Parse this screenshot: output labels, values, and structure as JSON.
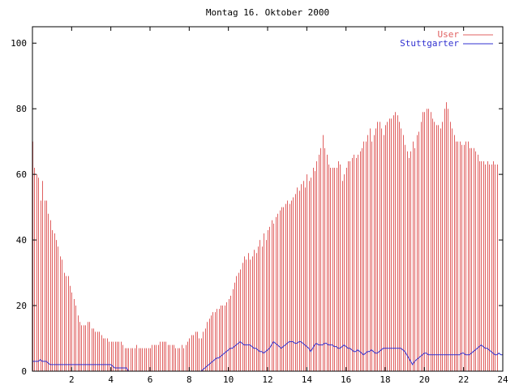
{
  "chart_data": {
    "type": "bar",
    "title": "Montag 16. Oktober 2000",
    "xlabel": "",
    "ylabel": "",
    "xlim": [
      0,
      24
    ],
    "ylim": [
      0,
      105
    ],
    "x_ticks": [
      2,
      4,
      6,
      8,
      10,
      12,
      14,
      16,
      18,
      20,
      22,
      24
    ],
    "y_ticks": [
      0,
      20,
      40,
      60,
      80,
      100
    ],
    "legend_position": "top-right",
    "series": [
      {
        "name": "User",
        "style": "impulses",
        "color": "#e06060",
        "x_start": 0,
        "x_step": 0.1,
        "values": [
          70,
          62,
          60,
          59,
          52,
          58,
          52,
          52,
          48,
          46,
          43,
          42,
          40,
          38,
          35,
          34,
          30,
          29,
          29,
          26,
          24,
          22,
          20,
          17,
          15,
          14,
          14,
          14,
          15,
          15,
          13,
          13,
          12,
          12,
          12,
          11,
          10,
          10,
          10,
          9,
          9,
          9,
          9,
          9,
          9,
          9,
          8,
          7,
          7,
          7,
          7,
          7,
          7,
          8,
          7,
          7,
          7,
          7,
          7,
          7,
          7,
          8,
          8,
          8,
          8,
          9,
          9,
          9,
          9,
          8,
          8,
          8,
          8,
          7,
          7,
          7,
          8,
          7,
          8,
          9,
          10,
          11,
          11,
          12,
          12,
          10,
          10,
          12,
          13,
          15,
          16,
          17,
          18,
          18,
          19,
          19,
          20,
          20,
          20,
          21,
          22,
          23,
          25,
          27,
          29,
          30,
          31,
          33,
          35,
          34,
          36,
          34,
          35,
          37,
          36,
          38,
          40,
          38,
          42,
          40,
          43,
          44,
          46,
          45,
          47,
          48,
          49,
          50,
          50,
          51,
          52,
          51,
          52,
          53,
          54,
          56,
          55,
          57,
          58,
          56,
          60,
          58,
          59,
          62,
          61,
          64,
          66,
          68,
          72,
          68,
          66,
          63,
          62,
          62,
          62,
          62,
          64,
          63,
          58,
          60,
          62,
          64,
          64,
          65,
          66,
          65,
          66,
          67,
          68,
          70,
          70,
          72,
          74,
          70,
          72,
          74,
          76,
          76,
          74,
          72,
          75,
          76,
          77,
          77,
          78,
          79,
          78,
          76,
          74,
          72,
          69,
          67,
          65,
          67,
          70,
          68,
          72,
          73,
          76,
          79,
          79,
          80,
          80,
          79,
          77,
          76,
          75,
          75,
          74,
          76,
          80,
          82,
          80,
          76,
          74,
          72,
          70,
          70,
          70,
          69,
          69,
          70,
          70,
          68,
          68,
          68,
          67,
          66,
          64,
          64,
          64,
          63,
          64,
          63,
          63,
          64,
          63,
          63
        ]
      },
      {
        "name": "Stuttgarter",
        "style": "line",
        "color": "#3030d0",
        "x_start": 0,
        "x_step": 0.1,
        "values": [
          3,
          3,
          3,
          3,
          3.5,
          3,
          3,
          3,
          2.5,
          2,
          2,
          2,
          2,
          2,
          2,
          2,
          2,
          2,
          2,
          2,
          2,
          2,
          2,
          2,
          2,
          2,
          2,
          2,
          2,
          2,
          2,
          2,
          2,
          2,
          2,
          2,
          2,
          2,
          2,
          2,
          2,
          1.5,
          1,
          1,
          1,
          1,
          1,
          1,
          1,
          0,
          0,
          0,
          0,
          0,
          0,
          0,
          0,
          0,
          0,
          0,
          0,
          0,
          0,
          0,
          0,
          0,
          0,
          0,
          0,
          0,
          0,
          0,
          0,
          0,
          0,
          0,
          0,
          0,
          0,
          0,
          0,
          0,
          0,
          0,
          0,
          0,
          0,
          0.5,
          1,
          1.5,
          2,
          2.5,
          3,
          3.5,
          4,
          4,
          4.5,
          5,
          5.5,
          6,
          6.5,
          7,
          7,
          7.5,
          8,
          8.5,
          9,
          8.5,
          8,
          8,
          8,
          8,
          7.5,
          7,
          7,
          6.5,
          6,
          6,
          5.5,
          6,
          6.5,
          7,
          8,
          9,
          8.5,
          8,
          7.5,
          7,
          7.5,
          8,
          8.5,
          9,
          9,
          9,
          8.5,
          8.5,
          9,
          9,
          8.5,
          8,
          7.5,
          7,
          6,
          7,
          8,
          8.5,
          8,
          8,
          8,
          8.5,
          8.5,
          8,
          8,
          8,
          7.5,
          7.5,
          7,
          7,
          7.5,
          8,
          7.5,
          7,
          7,
          6.5,
          6,
          6,
          6.5,
          6,
          5.5,
          5,
          5.5,
          6,
          6,
          6.5,
          6,
          5.5,
          5.5,
          6,
          6.5,
          7,
          7,
          7,
          7,
          7,
          7,
          7,
          7,
          7,
          7,
          6.5,
          6,
          5,
          4,
          3,
          2,
          3,
          3.5,
          4,
          4.5,
          5,
          5.5,
          5.5,
          5,
          5,
          5,
          5,
          5,
          5,
          5,
          5,
          5,
          5,
          5,
          5,
          5,
          5,
          5,
          5,
          5,
          5.5,
          5.5,
          5,
          5,
          5,
          5.5,
          6,
          6.5,
          7,
          7.5,
          8,
          7.5,
          7,
          7,
          6.5,
          6,
          5.5,
          5,
          5,
          5.5,
          5,
          5
        ]
      }
    ]
  }
}
